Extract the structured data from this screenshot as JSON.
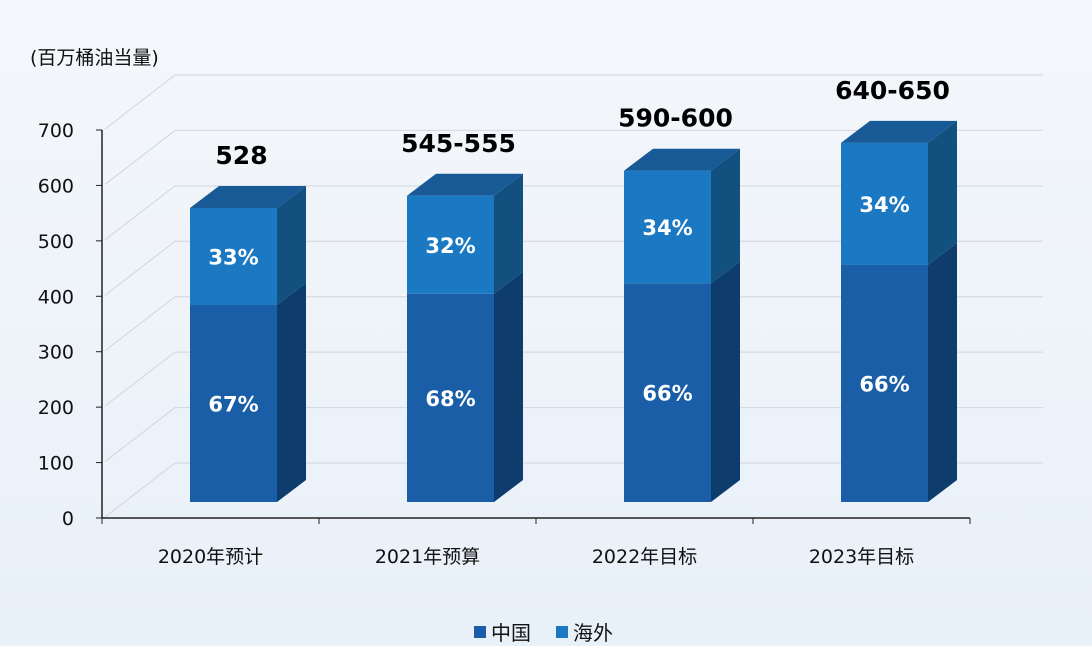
{
  "chart_data": {
    "type": "bar",
    "stacked": true,
    "three_d": true,
    "ylabel": "(百万桶油当量)",
    "ylim": [
      0,
      700
    ],
    "yticks": [
      "0",
      "100",
      "200",
      "300",
      "400",
      "500",
      "600",
      "700"
    ],
    "grid": true,
    "categories": [
      "2020年预计",
      "2021年预算",
      "2022年目标",
      "2023年目标"
    ],
    "totals": [
      528,
      550,
      595,
      645
    ],
    "total_labels": [
      "528",
      "545-555",
      "590-600",
      "640-650"
    ],
    "series": [
      {
        "name": "中国",
        "color": "#1a5ea8",
        "side": "#0e3c6c",
        "percent_labels": [
          "67%",
          "68%",
          "66%",
          "66%"
        ],
        "share": [
          0.67,
          0.68,
          0.66,
          0.66
        ]
      },
      {
        "name": "海外",
        "color": "#1b79c3",
        "side": "#12507f",
        "percent_labels": [
          "33%",
          "32%",
          "34%",
          "34%"
        ],
        "share": [
          0.33,
          0.32,
          0.34,
          0.34
        ]
      }
    ],
    "legend_position": "bottom"
  }
}
